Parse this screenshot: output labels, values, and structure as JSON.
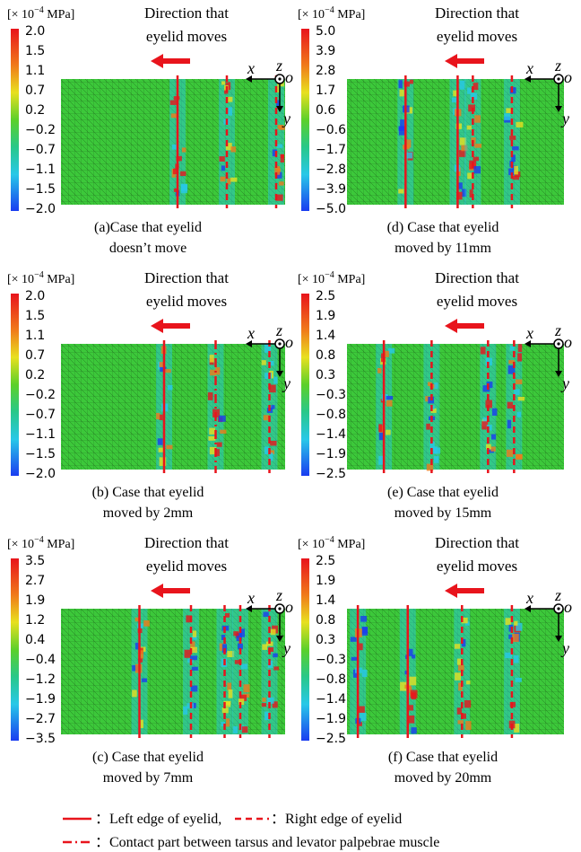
{
  "panels": [
    {
      "unit": {
        "base": "[× 10",
        "exponent": "−4",
        "suffix": " MPa]"
      },
      "colorbar_labels": [
        "2.0",
        "1.5",
        "1.1",
        "0.7",
        "0.2",
        "−0.2",
        "−0.7",
        "−1.1",
        "−1.5",
        "−2.0"
      ],
      "direction_label": [
        "Direction that",
        "eyelid moves"
      ],
      "axes": {
        "x": "x",
        "z": "z",
        "origin": "o",
        "y": "y"
      },
      "caption": [
        "(a)Case that eyelid",
        "doesn’t move"
      ]
    },
    {
      "unit": {
        "base": "[× 10",
        "exponent": "−4",
        "suffix": " MPa]"
      },
      "colorbar_labels": [
        "2.0",
        "1.5",
        "1.1",
        "0.7",
        "0.2",
        "−0.2",
        "−0.7",
        "−1.1",
        "−1.5",
        "−2.0"
      ],
      "direction_label": [
        "Direction that",
        "eyelid moves"
      ],
      "axes": {
        "x": "x",
        "z": "z",
        "origin": "o",
        "y": "y"
      },
      "caption": [
        "(b) Case that eyelid",
        "moved by 2mm"
      ]
    },
    {
      "unit": {
        "base": "[× 10",
        "exponent": "−4",
        "suffix": " MPa]"
      },
      "colorbar_labels": [
        "3.5",
        "2.7",
        "1.9",
        "1.2",
        "0.4",
        "−0.4",
        "−1.2",
        "−1.9",
        "−2.7",
        "−3.5"
      ],
      "direction_label": [
        "Direction that",
        "eyelid moves"
      ],
      "axes": {
        "x": "x",
        "z": "z",
        "origin": "o",
        "y": "y"
      },
      "caption": [
        "(c) Case that eyelid",
        "moved by 7mm"
      ]
    },
    {
      "unit": {
        "base": "[× 10",
        "exponent": "−4",
        "suffix": " MPa]"
      },
      "colorbar_labels": [
        "5.0",
        "3.9",
        "2.8",
        "1.7",
        "0.6",
        "−0.6",
        "−1.7",
        "−2.8",
        "−3.9",
        "−5.0"
      ],
      "direction_label": [
        "Direction that",
        "eyelid moves"
      ],
      "axes": {
        "x": "x",
        "z": "z",
        "origin": "o",
        "y": "y"
      },
      "caption": [
        "(d) Case that eyelid",
        "moved by 11mm"
      ]
    },
    {
      "unit": {
        "base": "[× 10",
        "exponent": "−4",
        "suffix": " MPa]"
      },
      "colorbar_labels": [
        "2.5",
        "1.9",
        "1.4",
        "0.8",
        "0.3",
        "−0.3",
        "−0.8",
        "−1.4",
        "−1.9",
        "−2.5"
      ],
      "direction_label": [
        "Direction that",
        "eyelid moves"
      ],
      "axes": {
        "x": "x",
        "z": "z",
        "origin": "o",
        "y": "y"
      },
      "caption": [
        "(e) Case that eyelid",
        "moved by 15mm"
      ]
    },
    {
      "unit": {
        "base": "[× 10",
        "exponent": "−4",
        "suffix": " MPa]"
      },
      "colorbar_labels": [
        "2.5",
        "1.9",
        "1.4",
        "0.8",
        "0.3",
        "−0.3",
        "−0.8",
        "−1.4",
        "−1.9",
        "−2.5"
      ],
      "direction_label": [
        "Direction that",
        "eyelid moves"
      ],
      "axes": {
        "x": "x",
        "z": "z",
        "origin": "o",
        "y": "y"
      },
      "caption": [
        "(f) Case that eyelid",
        "moved by 20mm"
      ]
    }
  ],
  "legend": [
    "：Left edge of eyelid,",
    "：Right edge of eyelid",
    "：Contact part between tarsus and levator palpebrae muscle"
  ]
}
